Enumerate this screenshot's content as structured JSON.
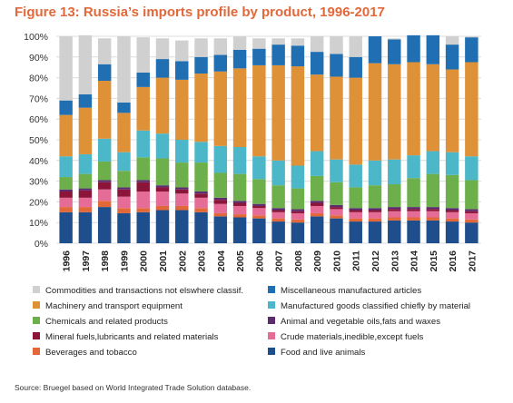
{
  "title": "Figure 13: Russia’s imports profile by product, 1996-2017",
  "source": "Source: Bruegel based on World Integrated Trade Solution database.",
  "chart_data": {
    "type": "bar",
    "stacked": true,
    "title": "Figure 13: Russia’s imports profile by product, 1996-2017",
    "ylim": [
      0,
      100
    ],
    "yticks": [
      "0%",
      "10%",
      "20%",
      "30%",
      "40%",
      "50%",
      "60%",
      "70%",
      "80%",
      "90%",
      "100%"
    ],
    "grid": true,
    "legend_position": "bottom",
    "categories": [
      "1996",
      "1997",
      "1998",
      "1999",
      "2000",
      "2001",
      "2002",
      "2003",
      "2004",
      "2005",
      "2006",
      "2007",
      "2008",
      "2009",
      "2010",
      "2011",
      "2012",
      "2013",
      "2014",
      "2015",
      "2016",
      "2017"
    ],
    "series": [
      {
        "name": "Food and live animals",
        "color": "#1f4e8c",
        "values": [
          15,
          15,
          17.5,
          14.5,
          15,
          16,
          16,
          15,
          13,
          12.5,
          12,
          10.5,
          10,
          13,
          12,
          10.5,
          10.5,
          11,
          11,
          11,
          10.5,
          10
        ]
      },
      {
        "name": "Beverages and tobacco",
        "color": "#e2683a",
        "values": [
          2.5,
          2.5,
          3,
          2.5,
          2,
          2,
          2,
          2,
          1.5,
          1.5,
          1.5,
          1.5,
          1.5,
          1.5,
          1.5,
          1.5,
          1.5,
          1.5,
          1.5,
          1.5,
          1.5,
          1.5
        ]
      },
      {
        "name": "Crude materials,inedible,except fuels",
        "color": "#e46c97",
        "values": [
          4.5,
          4.5,
          5.5,
          5.5,
          8,
          7,
          6,
          5,
          4.5,
          4,
          3.5,
          3,
          3,
          3.5,
          3,
          3,
          3,
          3,
          3,
          3,
          3,
          3
        ]
      },
      {
        "name": "Mineral fuels,lubricants and related materials",
        "color": "#8a1538",
        "values": [
          3,
          3.5,
          3.5,
          3.5,
          4.5,
          2,
          2,
          2,
          2,
          1.5,
          1,
          1,
          1,
          1.5,
          1,
          1,
          1,
          1,
          1,
          1,
          1,
          1
        ]
      },
      {
        "name": "Animal and vegetable oils,fats and waxes",
        "color": "#5b2c6f",
        "values": [
          1,
          1,
          1,
          1,
          1,
          1,
          1,
          1,
          1,
          1,
          1,
          1,
          1,
          1,
          1,
          1,
          1,
          1,
          1,
          1,
          1,
          1
        ]
      },
      {
        "name": "Chemicals and related products",
        "color": "#6db04b",
        "values": [
          6,
          7,
          9,
          8,
          11,
          13,
          12,
          14,
          12,
          13,
          12,
          11,
          10,
          12,
          11,
          10,
          11,
          11,
          14,
          16,
          16,
          14
        ]
      },
      {
        "name": "Manufactured goods classified chiefly by material",
        "color": "#4bb7c8",
        "values": [
          10,
          9.5,
          11,
          9,
          13,
          12,
          11,
          10,
          13,
          13,
          11,
          12,
          11,
          12,
          11,
          11,
          12,
          12,
          11,
          11,
          11,
          11.5
        ]
      },
      {
        "name": "Machinery and transport equipment",
        "color": "#df9137",
        "values": [
          20,
          22.5,
          28,
          19,
          21,
          27,
          29,
          33,
          36,
          38,
          44,
          46,
          48,
          37,
          40,
          42,
          47,
          46,
          45,
          42,
          40,
          45.5
        ]
      },
      {
        "name": "Miscellaneous manufactured articles",
        "color": "#1f6fb2",
        "values": [
          7,
          6.5,
          8,
          5,
          7,
          9,
          9,
          8,
          8,
          9,
          8,
          10,
          10,
          11,
          11,
          10,
          13,
          12,
          13,
          14,
          12,
          12
        ]
      },
      {
        "name": "Commodities and transactions not elswhere classif.",
        "color": "#d0d0d0",
        "values": [
          31,
          28.5,
          12.5,
          32,
          17,
          10,
          10,
          9,
          8,
          6.5,
          5,
          3,
          3.5,
          7.5,
          8.5,
          10,
          0,
          0.5,
          0,
          0,
          4,
          0.5
        ]
      }
    ],
    "legend_order": [
      "Commodities and transactions not elswhere classif.",
      "Miscellaneous manufactured articles",
      "Machinery and transport equipment",
      "Manufactured goods classified chiefly by material",
      "Chemicals and related products",
      "Animal and vegetable oils,fats and waxes",
      "Mineral fuels,lubricants and related materials",
      "Crude materials,inedible,except fuels",
      "Beverages and tobacco",
      "Food and live animals"
    ]
  }
}
